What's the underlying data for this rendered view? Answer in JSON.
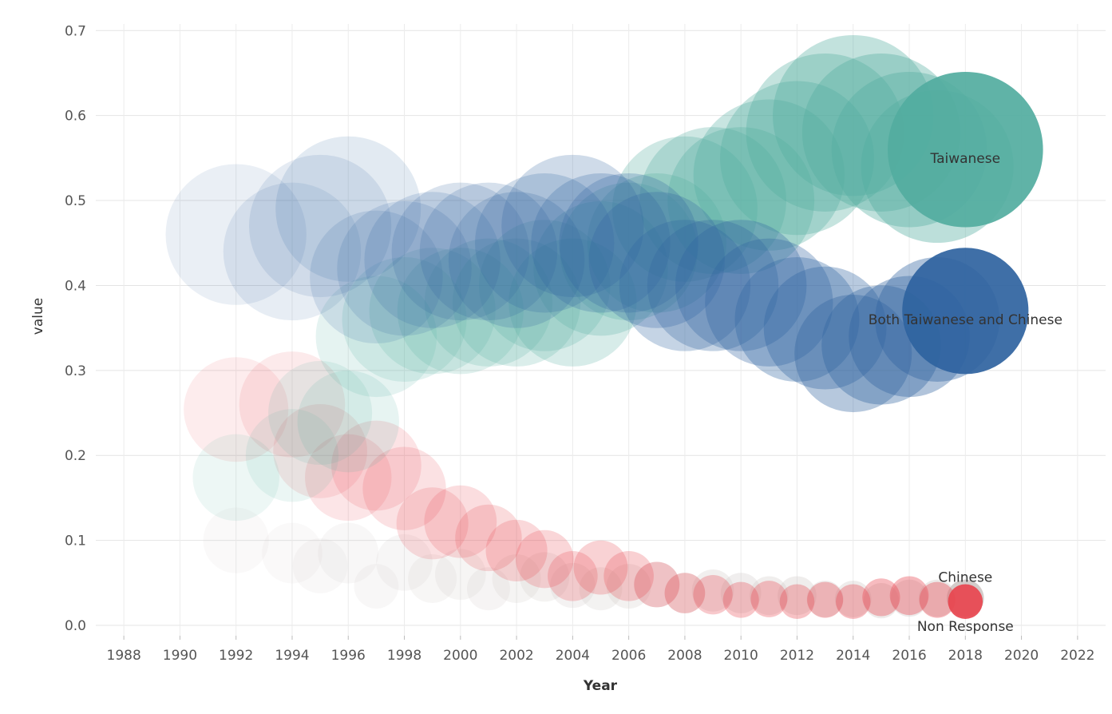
{
  "chart_data": {
    "type": "scatter",
    "subtype": "bubble",
    "title": "",
    "xlabel": "Year",
    "ylabel": "value",
    "xlim": [
      1987,
      2023
    ],
    "ylim": [
      0.0,
      0.72
    ],
    "x_ticks": [
      1988,
      1990,
      1992,
      1994,
      1996,
      1998,
      2000,
      2002,
      2004,
      2006,
      2008,
      2010,
      2012,
      2014,
      2016,
      2018,
      2020,
      2022
    ],
    "y_ticks": [
      0.0,
      0.1,
      0.2,
      0.3,
      0.4,
      0.5,
      0.6,
      0.7
    ],
    "y_tick_labels": [
      "0.0",
      "0.1",
      "0.2",
      "0.3",
      "0.4",
      "0.5",
      "0.6",
      "0.7"
    ],
    "grid": true,
    "legend": "none",
    "size_encodes": "value",
    "series": [
      {
        "name": "Non Response",
        "color": "#cfc8c6",
        "label_color": "#333333",
        "x": [
          1992,
          1994,
          1995,
          1996,
          1997,
          1998,
          1999,
          2000,
          2001,
          2002,
          2003,
          2004,
          2005,
          2006,
          2007,
          2008,
          2009,
          2010,
          2011,
          2012,
          2013,
          2014,
          2015,
          2016,
          2017,
          2018
        ],
        "y": [
          0.1,
          0.085,
          0.07,
          0.085,
          0.046,
          0.074,
          0.055,
          0.06,
          0.043,
          0.055,
          0.057,
          0.047,
          0.043,
          0.046,
          0.048,
          0.038,
          0.041,
          0.038,
          0.035,
          0.035,
          0.031,
          0.031,
          0.029,
          0.032,
          0.032,
          0.032
        ]
      },
      {
        "name": "Chinese",
        "color": "#e8454f",
        "label_color": "#333333",
        "x": [
          1992,
          1994,
          1995,
          1996,
          1997,
          1998,
          1999,
          2000,
          2001,
          2002,
          2003,
          2004,
          2005,
          2006,
          2007,
          2008,
          2009,
          2010,
          2011,
          2012,
          2013,
          2014,
          2015,
          2016,
          2017,
          2018
        ],
        "y": [
          0.254,
          0.26,
          0.205,
          0.174,
          0.188,
          0.161,
          0.12,
          0.122,
          0.103,
          0.088,
          0.078,
          0.058,
          0.068,
          0.058,
          0.048,
          0.038,
          0.036,
          0.03,
          0.031,
          0.028,
          0.03,
          0.028,
          0.033,
          0.035,
          0.03,
          0.028
        ]
      },
      {
        "name": "Taiwanese",
        "color": "#52ad9f",
        "label_color": "#333333",
        "x": [
          1992,
          1994,
          1995,
          1996,
          1997,
          1998,
          1999,
          2000,
          2001,
          2002,
          2003,
          2004,
          2005,
          2006,
          2007,
          2008,
          2009,
          2010,
          2011,
          2012,
          2013,
          2014,
          2015,
          2016,
          2017,
          2018
        ],
        "y": [
          0.174,
          0.2,
          0.25,
          0.24,
          0.34,
          0.36,
          0.37,
          0.37,
          0.38,
          0.38,
          0.4,
          0.38,
          0.42,
          0.44,
          0.45,
          0.49,
          0.5,
          0.5,
          0.53,
          0.55,
          0.58,
          0.6,
          0.58,
          0.56,
          0.54,
          0.56
        ]
      },
      {
        "name": "Both Taiwanese and Chinese",
        "color": "#2f63a0",
        "label_color": "#333333",
        "x": [
          1992,
          1994,
          1995,
          1996,
          1997,
          1998,
          1999,
          2000,
          2001,
          2002,
          2003,
          2004,
          2005,
          2006,
          2007,
          2008,
          2009,
          2010,
          2011,
          2012,
          2013,
          2014,
          2015,
          2016,
          2017,
          2018
        ],
        "y": [
          0.46,
          0.44,
          0.47,
          0.49,
          0.41,
          0.42,
          0.43,
          0.44,
          0.44,
          0.43,
          0.45,
          0.47,
          0.45,
          0.45,
          0.43,
          0.4,
          0.4,
          0.4,
          0.38,
          0.36,
          0.35,
          0.32,
          0.33,
          0.34,
          0.36,
          0.37
        ]
      }
    ],
    "annotations": [
      {
        "text": "Taiwanese",
        "series": "Taiwanese",
        "x": 2018,
        "y": 0.55
      },
      {
        "text": "Both Taiwanese and Chinese",
        "series": "Both Taiwanese and Chinese",
        "x": 2018,
        "y": 0.36
      },
      {
        "text": "Chinese",
        "series": "Chinese",
        "x": 2018,
        "y": 0.057
      },
      {
        "text": "Non Response",
        "series": "Non Response",
        "x": 2018,
        "y": -0.001
      }
    ]
  }
}
